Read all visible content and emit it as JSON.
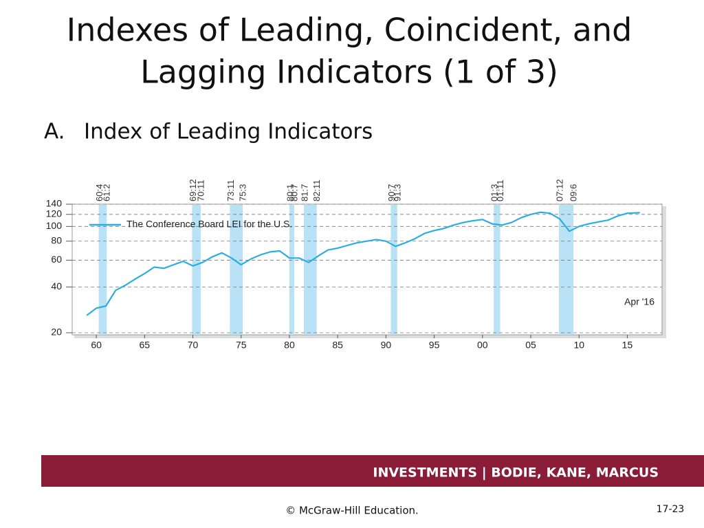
{
  "slide": {
    "title_lines": [
      "Indexes of Leading, Coincident, and",
      "Lagging Indicators (1 of 3)"
    ],
    "item_marker": "A.",
    "item_text": "Index of Leading Indicators",
    "footer": "INVESTMENTS | BODIE, KANE, MARCUS",
    "copyright": "© McGraw-Hill Education.",
    "page_number": "17-23"
  },
  "chart_data": {
    "type": "line",
    "log_scale": true,
    "grid": true,
    "annotation": "Apr '16",
    "x": [
      1959,
      1960,
      1961,
      1962,
      1963,
      1964,
      1965,
      1966,
      1967,
      1968,
      1969,
      1970,
      1971,
      1972,
      1973,
      1974,
      1975,
      1976,
      1977,
      1978,
      1979,
      1980,
      1981,
      1982,
      1983,
      1984,
      1985,
      1986,
      1987,
      1988,
      1989,
      1990,
      1991,
      1992,
      1993,
      1994,
      1995,
      1996,
      1997,
      1998,
      1999,
      2000,
      2001,
      2002,
      2003,
      2004,
      2005,
      2006,
      2007,
      2008,
      2009,
      2010,
      2011,
      2012,
      2013,
      2014,
      2015,
      2016.3
    ],
    "series": [
      {
        "name": "The Conference Board LEI for the U.S.",
        "color": "#2aaee0",
        "values": [
          26,
          29,
          30,
          38,
          41,
          45,
          49,
          54,
          53,
          56,
          59,
          55,
          58,
          63,
          67,
          62,
          56,
          61,
          65,
          68,
          69,
          62,
          62,
          58,
          64,
          70,
          72,
          75,
          78,
          80,
          82,
          80,
          74,
          78,
          83,
          90,
          94,
          97,
          102,
          106,
          109,
          111,
          104,
          102,
          106,
          114,
          120,
          124,
          122,
          112,
          93,
          100,
          104,
          107,
          110,
          117,
          122,
          123
        ]
      }
    ],
    "recessions": [
      {
        "start": 1960.25,
        "end": 1961.08,
        "start_label": "60:4",
        "end_label": "61:2"
      },
      {
        "start": 1969.92,
        "end": 1970.83,
        "start_label": "69:12",
        "end_label": "70:11"
      },
      {
        "start": 1973.83,
        "end": 1975.17,
        "start_label": "73:11",
        "end_label": "75:3"
      },
      {
        "start": 1980.0,
        "end": 1980.5,
        "start_label": "80:1",
        "end_label": "80:7"
      },
      {
        "start": 1981.5,
        "end": 1982.83,
        "start_label": "81:7",
        "end_label": "82:11"
      },
      {
        "start": 1990.5,
        "end": 1991.17,
        "start_label": "90:7",
        "end_label": "91:3"
      },
      {
        "start": 2001.17,
        "end": 2001.83,
        "start_label": "01:3",
        "end_label": "01:11"
      },
      {
        "start": 2007.92,
        "end": 2009.42,
        "start_label": "07:12",
        "end_label": "09:6"
      }
    ],
    "recession_color": "#b9e2f6",
    "xlim": [
      1957.5,
      2018.6
    ],
    "xticks": [
      {
        "value": 1960,
        "label": "60"
      },
      {
        "value": 1965,
        "label": "65"
      },
      {
        "value": 1970,
        "label": "70"
      },
      {
        "value": 1975,
        "label": "75"
      },
      {
        "value": 1980,
        "label": "80"
      },
      {
        "value": 1985,
        "label": "85"
      },
      {
        "value": 1990,
        "label": "90"
      },
      {
        "value": 1995,
        "label": "95"
      },
      {
        "value": 2000,
        "label": "00"
      },
      {
        "value": 2005,
        "label": "05"
      },
      {
        "value": 2010,
        "label": "10"
      },
      {
        "value": 2015,
        "label": "15"
      }
    ],
    "ylim": [
      20,
      140
    ],
    "yticks": [
      20,
      40,
      60,
      80,
      100,
      120,
      140
    ]
  }
}
